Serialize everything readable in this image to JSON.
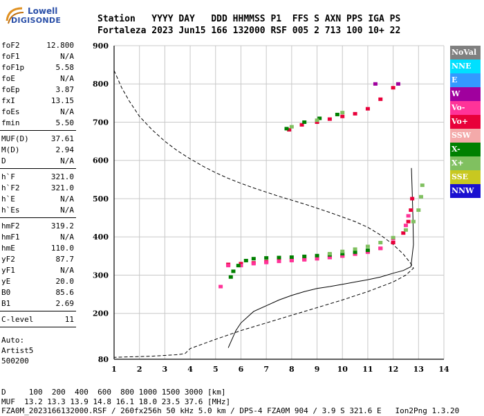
{
  "logo": {
    "line1": "Lowell",
    "line2": "DIGISONDE"
  },
  "header": {
    "labels": "Station   YYYY DAY   DDD HHMMSS P1  FFS S AXN PPS IGA PS",
    "values": "Fortaleza 2023 Jun15 166 132000 RSF 005 2 713 100 10+ 22"
  },
  "params": {
    "group1": [
      {
        "label": "foF2",
        "value": "12.800"
      },
      {
        "label": "foF1",
        "value": "N/A"
      },
      {
        "label": "foF1p",
        "value": "5.58"
      },
      {
        "label": "foE",
        "value": "N/A"
      },
      {
        "label": "foEp",
        "value": "3.87"
      },
      {
        "label": "fxI",
        "value": "13.15"
      },
      {
        "label": "foEs",
        "value": "N/A"
      },
      {
        "label": "fmin",
        "value": "5.50"
      }
    ],
    "group2": [
      {
        "label": "MUF(D)",
        "value": "37.61"
      },
      {
        "label": "M(D)",
        "value": "2.94"
      },
      {
        "label": "D",
        "value": "N/A"
      }
    ],
    "group3": [
      {
        "label": "h`F",
        "value": "321.0"
      },
      {
        "label": "h`F2",
        "value": "321.0"
      },
      {
        "label": "h`E",
        "value": "N/A"
      },
      {
        "label": "h`Es",
        "value": "N/A"
      }
    ],
    "group4": [
      {
        "label": "hmF2",
        "value": "319.2"
      },
      {
        "label": "hmF1",
        "value": "N/A"
      },
      {
        "label": "hmE",
        "value": "110.0"
      },
      {
        "label": "yF2",
        "value": "87.7"
      },
      {
        "label": "yF1",
        "value": "N/A"
      },
      {
        "label": "yE",
        "value": "20.0"
      },
      {
        "label": "B0",
        "value": "85.6"
      },
      {
        "label": "B1",
        "value": "2.69"
      }
    ],
    "group5": [
      {
        "label": "C-level",
        "value": "11"
      }
    ]
  },
  "auto": {
    "line1": "Auto:",
    "line2": "Artist5",
    "line3": "500200"
  },
  "legend": [
    {
      "label": "NoVal",
      "color": "#808080"
    },
    {
      "label": "NNE",
      "color": "#00e0ff"
    },
    {
      "label": "E",
      "color": "#3399ff"
    },
    {
      "label": "W",
      "color": "#a0009e"
    },
    {
      "label": "Vo-",
      "color": "#ff3399"
    },
    {
      "label": "Vo+",
      "color": "#e8003a"
    },
    {
      "label": "SSW",
      "color": "#f4aaaa"
    },
    {
      "label": "X-",
      "color": "#008000"
    },
    {
      "label": "X+",
      "color": "#80c060"
    },
    {
      "label": "SSE",
      "color": "#c8c820"
    },
    {
      "label": "NNW",
      "color": "#1a10d0"
    }
  ],
  "footer": {
    "line1": "D     100  200  400  600  800 1000 1500 3000 [km]",
    "line2": "MUF  13.2 13.3 13.9 14.8 16.1 18.0 23.5 37.6 [MHz]",
    "line3": "FZA0M_2023166132000.RSF / 260fx256h 50 kHz 5.0 km / DPS-4 FZA0M 904 / 3.9 S 321.6 E   Ion2Png 1.3.20"
  },
  "chart_data": {
    "type": "scatter",
    "x_ticks": [
      "1",
      "2",
      "3",
      "4",
      "5",
      "6",
      "7",
      "8",
      "9",
      "10",
      "11",
      "12",
      "13",
      "14"
    ],
    "y_ticks": [
      "80",
      "200",
      "300",
      "400",
      "500",
      "600",
      "700",
      "800",
      "900"
    ],
    "xlim": [
      1,
      14
    ],
    "ylim": [
      80,
      900
    ],
    "grid": true,
    "legend_placement": "right",
    "series": [
      {
        "style": "solid",
        "x": [
          5.5,
          5.8,
          6.0,
          6.5,
          7.0,
          7.5,
          8.0,
          8.5,
          9.0,
          9.5,
          10.0,
          10.5,
          11.0,
          11.5,
          12.0,
          12.4,
          12.7,
          12.8,
          12.78,
          12.75,
          12.72
        ],
        "y": [
          110,
          155,
          175,
          205,
          220,
          235,
          247,
          257,
          265,
          270,
          276,
          282,
          288,
          295,
          305,
          312,
          322,
          380,
          450,
          520,
          580
        ]
      },
      {
        "style": "dashed",
        "x": [
          1.0,
          1.3,
          1.6,
          2.0,
          2.5,
          3.0,
          3.5,
          4.0,
          4.5,
          5.0,
          5.5,
          6.0,
          6.5,
          7.0,
          7.5,
          8.0,
          8.5,
          9.0,
          9.5,
          10.0,
          10.5,
          11.0,
          11.5,
          12.0,
          12.4,
          12.7,
          12.8,
          12.5,
          12.0,
          11.0,
          10.0,
          9.0,
          8.0,
          7.0,
          6.0,
          5.0,
          4.5,
          4.0,
          3.8,
          3.5,
          3.0,
          2.5,
          2.0,
          1.5,
          1.0
        ],
        "y": [
          835,
          790,
          755,
          715,
          680,
          650,
          625,
          604,
          585,
          568,
          553,
          540,
          528,
          517,
          506,
          496,
          486,
          475,
          464,
          452,
          440,
          425,
          405,
          380,
          355,
          330,
          318,
          300,
          282,
          257,
          235,
          215,
          195,
          175,
          155,
          132,
          120,
          108,
          95,
          92,
          90,
          88,
          87,
          86,
          85
        ]
      },
      {
        "name": "Vo+",
        "x": [
          5.5,
          6.0,
          6.5,
          7.0,
          7.5,
          8.0,
          8.5,
          9.0,
          9.5,
          10.0,
          10.5,
          11.0,
          11.5,
          12.0,
          12.4,
          12.6,
          12.7,
          12.75,
          7.9,
          8.4,
          9.0,
          9.5,
          10.0,
          10.5,
          11.0,
          11.5,
          12.0
        ],
        "y": [
          328,
          330,
          332,
          335,
          337,
          339,
          341,
          343,
          346,
          350,
          355,
          362,
          370,
          385,
          410,
          440,
          470,
          500,
          680,
          693,
          700,
          708,
          715,
          722,
          735,
          760,
          790
        ]
      },
      {
        "name": "Vo-",
        "x": [
          5.2,
          5.5,
          6.0,
          6.5,
          7.0,
          7.5,
          8.0,
          8.5,
          9.0,
          9.5,
          10.0,
          10.5,
          11.0,
          11.5,
          12.0,
          12.5,
          12.6
        ],
        "y": [
          270,
          325,
          325,
          330,
          333,
          336,
          338,
          340,
          343,
          346,
          350,
          355,
          360,
          370,
          395,
          430,
          455
        ]
      },
      {
        "name": "X-",
        "x": [
          5.6,
          5.7,
          5.9,
          6.2,
          6.5,
          7.0,
          7.5,
          8.0,
          8.5,
          9.0,
          9.5,
          10.0,
          10.5,
          11.0,
          7.8,
          8.5,
          9.1,
          9.8
        ],
        "y": [
          295,
          310,
          325,
          338,
          343,
          345,
          346,
          347,
          349,
          351,
          353,
          356,
          360,
          365,
          683,
          700,
          710,
          720
        ]
      },
      {
        "name": "X+",
        "x": [
          9.5,
          10.0,
          10.5,
          11.0,
          11.5,
          12.0,
          12.5,
          12.8,
          13.0,
          13.1,
          13.15,
          8.0,
          9.0,
          10.0
        ],
        "y": [
          356,
          362,
          368,
          375,
          385,
          398,
          418,
          440,
          470,
          505,
          535,
          688,
          705,
          725
        ]
      },
      {
        "name": "W",
        "x": [
          11.3,
          12.2
        ],
        "y": [
          800,
          800
        ]
      }
    ]
  }
}
